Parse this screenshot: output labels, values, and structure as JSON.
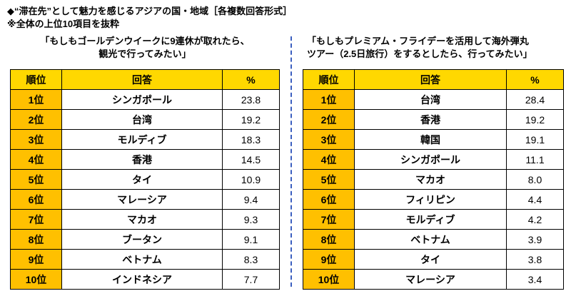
{
  "heading": {
    "line1": "◆“滞在先”として魅力を感じるアジアの国・地域［各複数回答形式］",
    "line2": "※全体の上位10項目を抜粋"
  },
  "colors": {
    "header_bg": "#ffd800",
    "rank_bg": "#ffc000",
    "separator": "#3b5fc0"
  },
  "chart_data": [
    {
      "type": "table",
      "title_lines": [
        "「もしもゴールデンウイークに9連休が取れたら、",
        "観光で行ってみたい」"
      ],
      "columns": [
        "順位",
        "回答",
        "%"
      ],
      "rows": [
        [
          "1位",
          "シンガポール",
          "23.8"
        ],
        [
          "2位",
          "台湾",
          "19.2"
        ],
        [
          "3位",
          "モルディブ",
          "18.3"
        ],
        [
          "4位",
          "香港",
          "14.5"
        ],
        [
          "5位",
          "タイ",
          "10.9"
        ],
        [
          "6位",
          "マレーシア",
          "9.4"
        ],
        [
          "7位",
          "マカオ",
          "9.3"
        ],
        [
          "8位",
          "ブータン",
          "9.1"
        ],
        [
          "9位",
          "ベトナム",
          "8.3"
        ],
        [
          "10位",
          "インドネシア",
          "7.7"
        ]
      ]
    },
    {
      "type": "table",
      "title_lines": [
        "「もしもプレミアム・フライデーを活用して海外弾丸",
        "ツアー（2.5日旅行）をするとしたら、行ってみたい」"
      ],
      "columns": [
        "順位",
        "回答",
        "%"
      ],
      "rows": [
        [
          "1位",
          "台湾",
          "28.4"
        ],
        [
          "2位",
          "香港",
          "19.2"
        ],
        [
          "3位",
          "韓国",
          "19.1"
        ],
        [
          "4位",
          "シンガポール",
          "11.1"
        ],
        [
          "5位",
          "マカオ",
          "8.0"
        ],
        [
          "6位",
          "フィリピン",
          "4.4"
        ],
        [
          "7位",
          "モルディブ",
          "4.2"
        ],
        [
          "8位",
          "ベトナム",
          "3.9"
        ],
        [
          "9位",
          "タイ",
          "3.8"
        ],
        [
          "10位",
          "マレーシア",
          "3.4"
        ]
      ]
    }
  ]
}
